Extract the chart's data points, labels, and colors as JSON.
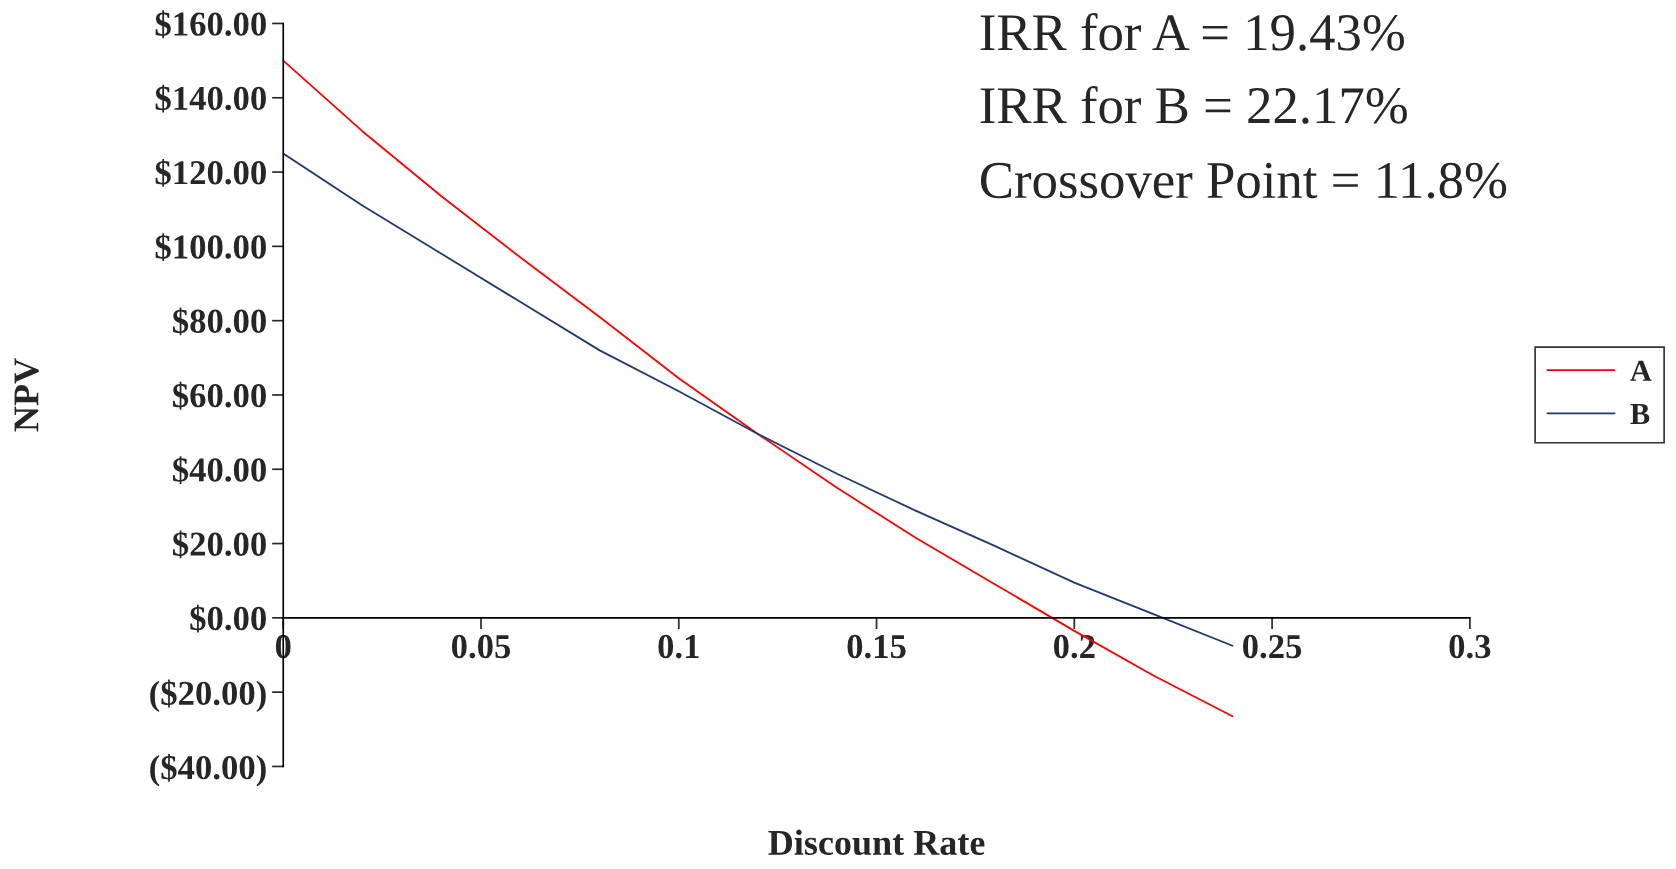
{
  "chart_data": {
    "type": "line",
    "xlabel": "Discount Rate",
    "ylabel": "NPV",
    "annotations": [
      "IRR for A = 19.43%",
      "IRR for B = 22.17%",
      "Crossover Point = 11.8%"
    ],
    "x": [
      0,
      0.02,
      0.04,
      0.06,
      0.08,
      0.1,
      0.12,
      0.14,
      0.16,
      0.18,
      0.2,
      0.22,
      0.24
    ],
    "series": [
      {
        "name": "A",
        "color": "#ff0000",
        "values": [
          150,
          131,
          113.5,
          97,
          81,
          64.5,
          49.5,
          35,
          21.5,
          9,
          -3.5,
          -15.5,
          -26.5
        ]
      },
      {
        "name": "B",
        "color": "#1f3a6e",
        "values": [
          125,
          111,
          98,
          85,
          72,
          61,
          49.5,
          38.8,
          28.8,
          19.3,
          9.5,
          1,
          -7.5
        ]
      }
    ],
    "xlim": [
      0,
      0.3
    ],
    "xticks": [
      0,
      0.05,
      0.1,
      0.15,
      0.2,
      0.25,
      0.3
    ],
    "ylim": [
      -40,
      160
    ],
    "yticks": [
      {
        "value": -40,
        "label": "($40.00)"
      },
      {
        "value": -20,
        "label": "($20.00)"
      },
      {
        "value": 0,
        "label": "$0.00"
      },
      {
        "value": 20,
        "label": "$20.00"
      },
      {
        "value": 40,
        "label": "$40.00"
      },
      {
        "value": 60,
        "label": "$60.00"
      },
      {
        "value": 80,
        "label": "$80.00"
      },
      {
        "value": 100,
        "label": "$100.00"
      },
      {
        "value": 120,
        "label": "$120.00"
      },
      {
        "value": 140,
        "label": "$140.00"
      },
      {
        "value": 160,
        "label": "$160.00"
      }
    ],
    "grid": false,
    "legend": "right",
    "marker": "none",
    "line_style": "solid"
  }
}
